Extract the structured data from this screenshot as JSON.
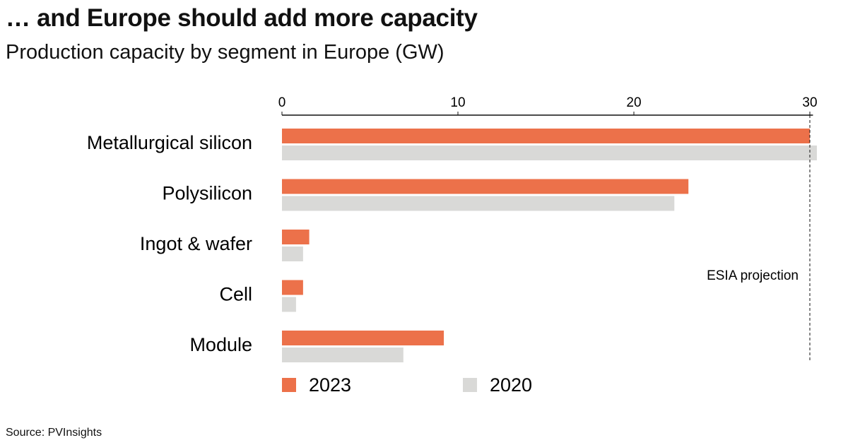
{
  "title": "… and Europe should add more capacity",
  "subtitle": "Production capacity by segment in Europe (GW)",
  "source": "Source: PVInsights",
  "chart_data": {
    "type": "bar",
    "orientation": "horizontal",
    "title": "… and Europe should add more capacity",
    "subtitle": "Production capacity by segment in Europe (GW)",
    "categories": [
      "Metallurgical silicon",
      "Polysilicon",
      "Ingot & wafer",
      "Cell",
      "Module"
    ],
    "series": [
      {
        "name": "2023",
        "color": "#EC714A",
        "values": [
          30.0,
          23.1,
          1.55,
          1.2,
          9.2
        ]
      },
      {
        "name": "2020",
        "color": "#D9D9D7",
        "values": [
          30.4,
          22.3,
          1.2,
          0.8,
          6.9
        ]
      }
    ],
    "xlim": [
      0,
      30.5
    ],
    "xticks": [
      0,
      10,
      20,
      30
    ],
    "axis_position": "top",
    "grid": false,
    "legend_position": "bottom",
    "reference_line": {
      "value": 30,
      "label": "ESIA projection",
      "style": "dashed"
    }
  }
}
